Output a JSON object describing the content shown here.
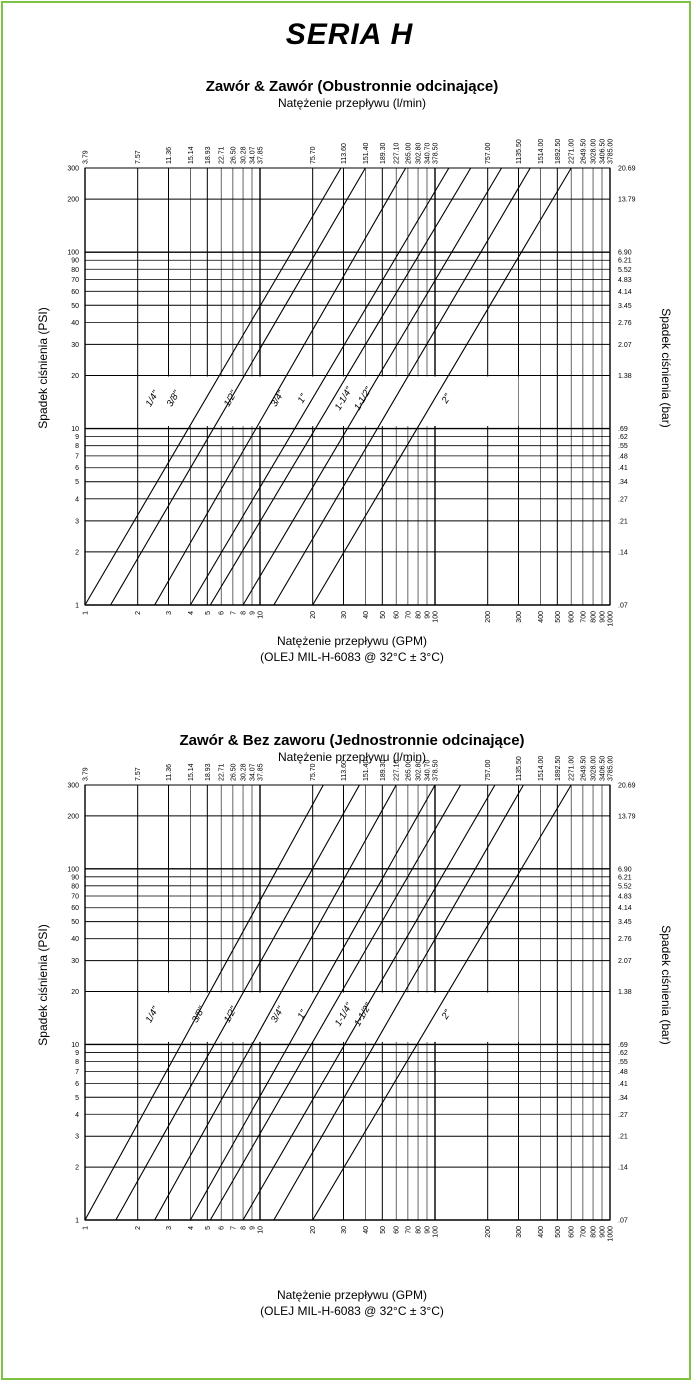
{
  "page": {
    "title": "SERIA H",
    "border_color": "#7dc242"
  },
  "chart_data": [
    {
      "type": "line",
      "title": "Zawór & Zawór (Obustronnie odcinające)",
      "top_axis_label": "Natężenie przepływu (l/min)",
      "xlabel": "Natężenie przepływu (GPM)",
      "xlabel_note": "(OLEJ MIL-H-6083 @ 32°C ± 3°C)",
      "ylabel": "Spadek ciśnienia (PSI)",
      "y2label": "Spadek ciśnienia (bar)",
      "x_scale": "log",
      "y_scale": "log",
      "xlim": [
        1,
        1000
      ],
      "ylim": [
        1,
        300
      ],
      "grid": true,
      "x_ticks": [
        "1",
        "2",
        "3",
        "4",
        "5",
        "6",
        "7",
        "8",
        "9",
        "10",
        "20",
        "30",
        "40",
        "50",
        "60",
        "70",
        "80",
        "90",
        "100",
        "200",
        "300",
        "400",
        "500",
        "600",
        "700",
        "800",
        "900",
        "1000"
      ],
      "x_top_ticks": [
        "3.79",
        "7.57",
        "11.36",
        "15.14",
        "18.93",
        "22.71",
        "26.50",
        "30.28",
        "34.07",
        "37.85",
        "75.70",
        "113.60",
        "151.40",
        "189.30",
        "227.10",
        "265.00",
        "302.80",
        "340.70",
        "378.50",
        "757.00",
        "1135.50",
        "1514.00",
        "1892.50",
        "2271.00",
        "2649.50",
        "3028.00",
        "3406.50",
        "3785.00"
      ],
      "y_ticks": [
        "1",
        "2",
        "3",
        "4",
        "5",
        "6",
        "7",
        "8",
        "9",
        "10",
        "20",
        "30",
        "40",
        "50",
        "60",
        "70",
        "80",
        "90",
        "100",
        "200",
        "300"
      ],
      "y_right_ticks": [
        ".07",
        ".14",
        ".21",
        ".27",
        ".34",
        ".41",
        ".48",
        ".55",
        ".62",
        ".69",
        "1.38",
        "2.07",
        "2.76",
        "3.45",
        "4.14",
        "4.83",
        "5.52",
        "6.21",
        "6.90",
        "13.79",
        "20.69"
      ],
      "series": [
        {
          "name": "1/4\"",
          "x_at_psi_1": 1.0,
          "x_at_psi_300": 29,
          "label_x": 2.5
        },
        {
          "name": "3/8\"",
          "x_at_psi_1": 1.4,
          "x_at_psi_300": 40,
          "label_x": 3.3
        },
        {
          "name": "1/2\"",
          "x_at_psi_1": 2.5,
          "x_at_psi_300": 68,
          "label_x": 7.0
        },
        {
          "name": "3/4\"",
          "x_at_psi_1": 4.0,
          "x_at_psi_300": 120,
          "label_x": 13
        },
        {
          "name": "1\"",
          "x_at_psi_1": 5.2,
          "x_at_psi_300": 160,
          "label_x": 18
        },
        {
          "name": "1-1/4\"",
          "x_at_psi_1": 8.0,
          "x_at_psi_300": 240,
          "label_x": 31
        },
        {
          "name": "1-1/2\"",
          "x_at_psi_1": 12,
          "x_at_psi_300": 350,
          "label_x": 40
        },
        {
          "name": "2\"",
          "x_at_psi_1": 20,
          "x_at_psi_300": 600,
          "label_x": 120
        }
      ]
    },
    {
      "type": "line",
      "title": "Zawór & Bez zaworu (Jednostronnie odcinające)",
      "top_axis_label": "Natężenie przepływu (l/min)",
      "xlabel": "Natężenie przepływu (GPM)",
      "xlabel_note": "(OLEJ MIL-H-6083 @ 32°C ± 3°C)",
      "ylabel": "Spadek ciśnienia (PSI)",
      "y2label": "Spadek ciśnienia (bar)",
      "x_scale": "log",
      "y_scale": "log",
      "xlim": [
        1,
        1000
      ],
      "ylim": [
        1,
        300
      ],
      "grid": true,
      "x_ticks": [
        "1",
        "2",
        "3",
        "4",
        "5",
        "6",
        "7",
        "8",
        "9",
        "10",
        "20",
        "30",
        "40",
        "50",
        "60",
        "70",
        "80",
        "90",
        "100",
        "200",
        "300",
        "400",
        "500",
        "600",
        "700",
        "800",
        "900",
        "1000"
      ],
      "x_top_ticks": [
        "3.79",
        "7.57",
        "11.36",
        "15.14",
        "18.93",
        "22.71",
        "26.50",
        "30.28",
        "34.07",
        "37.85",
        "75.70",
        "113.60",
        "151.40",
        "189.30",
        "227.10",
        "265.00",
        "302.80",
        "340.70",
        "378.50",
        "757.00",
        "1135.50",
        "1514.00",
        "1892.50",
        "2271.00",
        "2649.50",
        "3028.00",
        "3406.50",
        "3785.00"
      ],
      "y_ticks": [
        "1",
        "2",
        "3",
        "4",
        "5",
        "6",
        "7",
        "8",
        "9",
        "10",
        "20",
        "30",
        "40",
        "50",
        "60",
        "70",
        "80",
        "90",
        "100",
        "200",
        "300"
      ],
      "y_right_ticks": [
        ".07",
        ".14",
        ".21",
        ".27",
        ".34",
        ".41",
        ".48",
        ".55",
        ".62",
        ".69",
        "1.38",
        "2.07",
        "2.76",
        "3.45",
        "4.14",
        "4.83",
        "5.52",
        "6.21",
        "6.90",
        "13.79",
        "20.69"
      ],
      "series": [
        {
          "name": "1/4\"",
          "x_at_psi_1": 1.0,
          "x_at_psi_300": 23,
          "label_x": 2.5
        },
        {
          "name": "3/8\"",
          "x_at_psi_1": 1.5,
          "x_at_psi_300": 37,
          "label_x": 4.6
        },
        {
          "name": "1/2\"",
          "x_at_psi_1": 2.5,
          "x_at_psi_300": 60,
          "label_x": 7.0
        },
        {
          "name": "3/4\"",
          "x_at_psi_1": 4.0,
          "x_at_psi_300": 100,
          "label_x": 13
        },
        {
          "name": "1\"",
          "x_at_psi_1": 5.2,
          "x_at_psi_300": 140,
          "label_x": 18
        },
        {
          "name": "1-1/4\"",
          "x_at_psi_1": 8.0,
          "x_at_psi_300": 220,
          "label_x": 31
        },
        {
          "name": "1-1/2\"",
          "x_at_psi_1": 12,
          "x_at_psi_300": 320,
          "label_x": 40
        },
        {
          "name": "2\"",
          "x_at_psi_1": 20,
          "x_at_psi_300": 600,
          "label_x": 120
        }
      ]
    }
  ]
}
